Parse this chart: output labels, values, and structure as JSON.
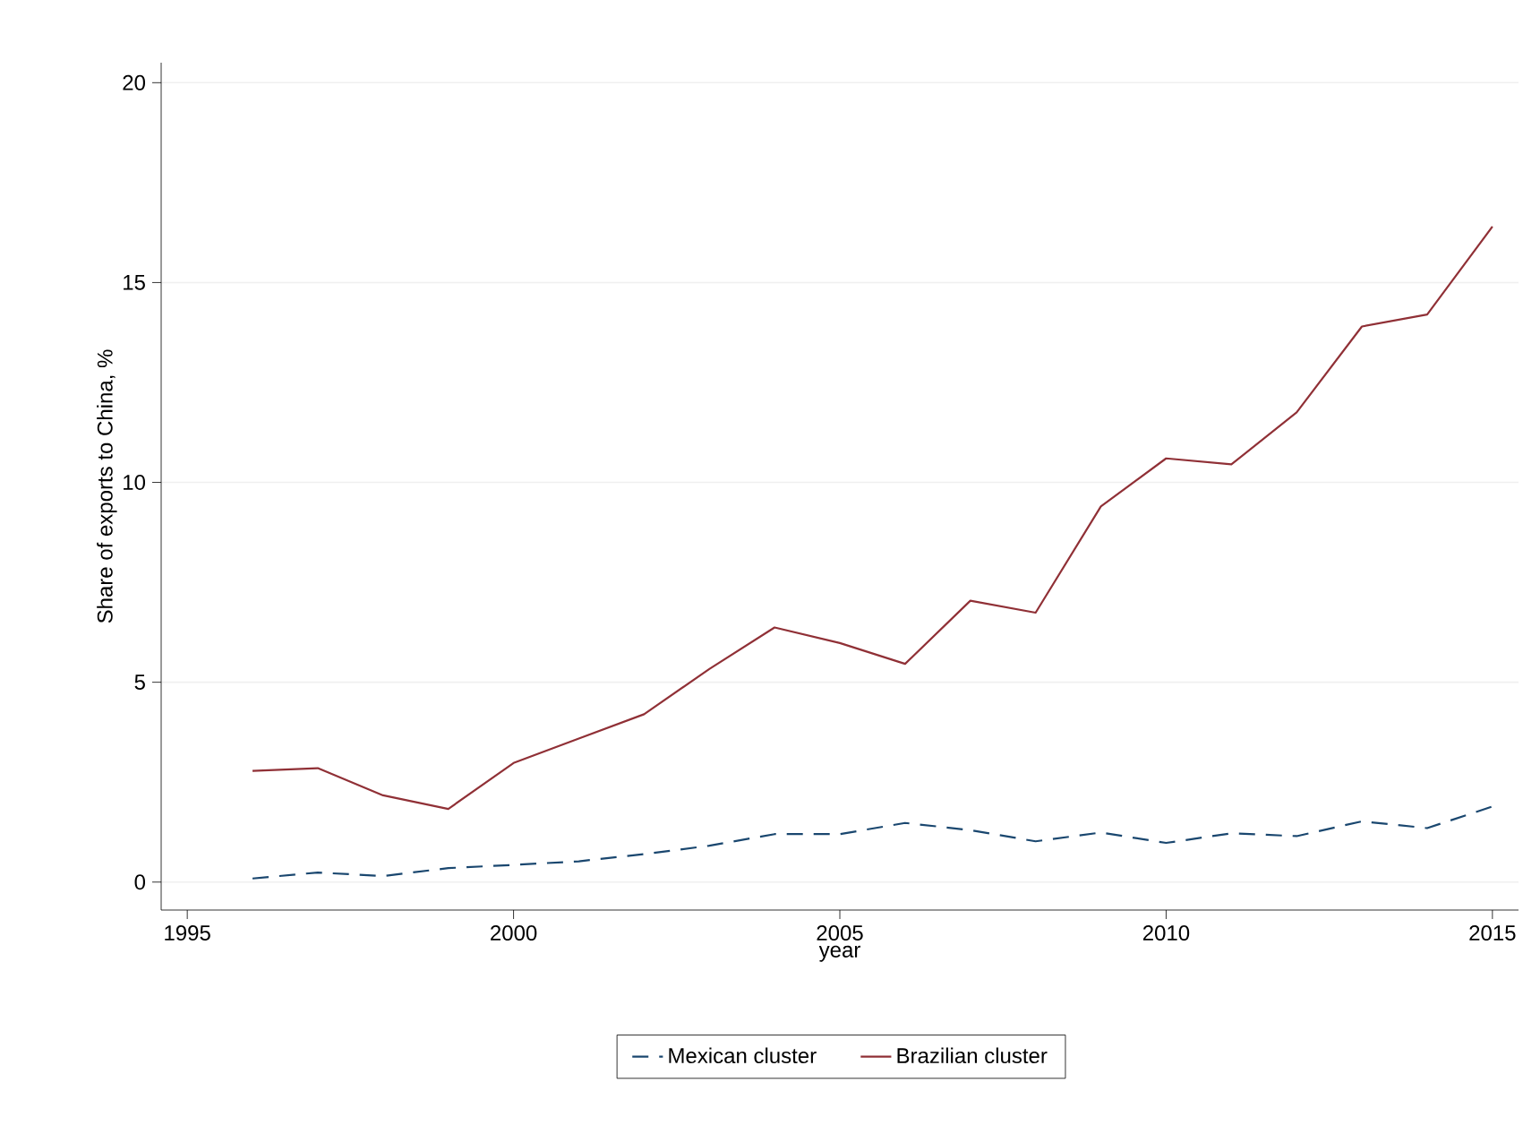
{
  "chart_data": {
    "type": "line",
    "xlabel": "year",
    "ylabel": "Share of exports to China, %",
    "x": [
      1996,
      1997,
      1998,
      1999,
      2000,
      2001,
      2002,
      2003,
      2004,
      2005,
      2006,
      2007,
      2008,
      2009,
      2010,
      2011,
      2012,
      2013,
      2014,
      2015
    ],
    "series": [
      {
        "name": "Mexican cluster",
        "color": "#1a476f",
        "line_style": "dashed",
        "values": [
          0.09,
          0.24,
          0.15,
          0.35,
          0.43,
          0.52,
          0.7,
          0.91,
          1.2,
          1.2,
          1.48,
          1.3,
          1.02,
          1.24,
          0.98,
          1.22,
          1.15,
          1.52,
          1.35,
          1.89
        ]
      },
      {
        "name": "Brazilian cluster",
        "color": "#903036",
        "line_style": "solid",
        "values": [
          2.78,
          2.85,
          2.17,
          1.83,
          2.98,
          3.59,
          4.2,
          5.33,
          6.37,
          5.98,
          5.46,
          7.04,
          6.74,
          9.4,
          10.6,
          10.45,
          11.75,
          13.9,
          14.2,
          16.4
        ]
      }
    ],
    "xlim": [
      1994.6,
      2015.4
    ],
    "ylim": [
      -0.7,
      20.5
    ],
    "xticks": [
      1995,
      2000,
      2005,
      2010,
      2015
    ],
    "yticks": [
      0,
      5,
      10,
      15,
      20
    ],
    "grid": "y",
    "legend": "bottom",
    "marker": "none"
  }
}
